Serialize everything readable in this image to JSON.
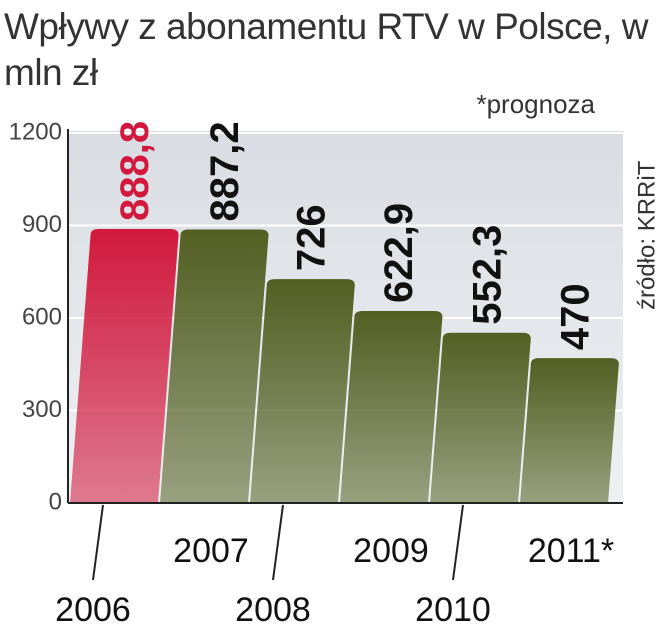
{
  "chart_data": {
    "type": "bar",
    "title": "Wpływy z abonamentu RTV w Polsce, w mln zł",
    "note": "*prognoza",
    "source": "źródło: KRRiT",
    "categories": [
      "2006",
      "2007",
      "2008",
      "2009",
      "2010",
      "2011*"
    ],
    "values": [
      888.8,
      887.2,
      726,
      622.9,
      552.3,
      470
    ],
    "value_labels": [
      "888,8",
      "887,2",
      "726",
      "622,9",
      "552,3",
      "470"
    ],
    "colors": [
      "#d2193d",
      "#535f22",
      "#535f22",
      "#535f22",
      "#535f22",
      "#535f22"
    ],
    "value_label_colors": [
      "#d2193d",
      "#111111",
      "#111111",
      "#111111",
      "#111111",
      "#111111"
    ],
    "ylim": [
      0,
      1200
    ],
    "yticks": [
      0,
      300,
      600,
      900,
      1200
    ],
    "grid": true
  }
}
